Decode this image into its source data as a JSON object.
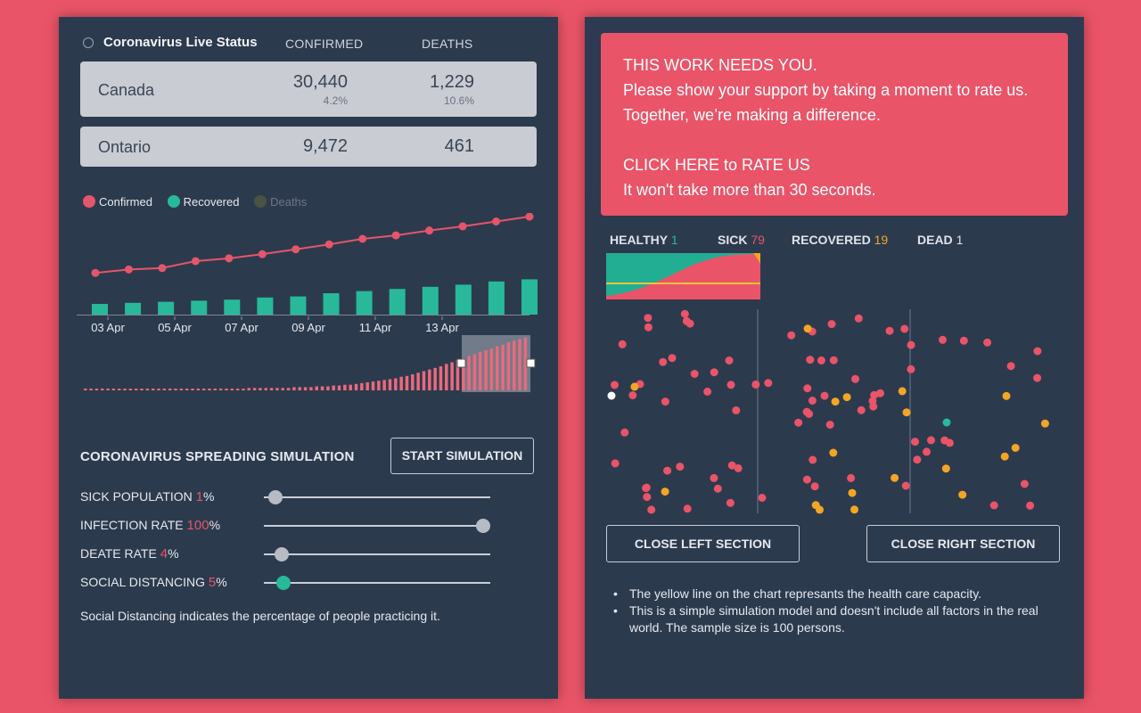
{
  "live_status": {
    "title": "Coronavirus Live Status",
    "col_confirmed": "CONFIRMED",
    "col_deaths": "DEATHS",
    "rows": [
      {
        "region": "Canada",
        "confirmed": "30,440",
        "confirmed_pct": "4.2%",
        "deaths": "1,229",
        "deaths_pct": "10.6%"
      },
      {
        "region": "Ontario",
        "confirmed": "9,472",
        "deaths": "461"
      }
    ]
  },
  "legend": {
    "confirmed": "Confirmed",
    "recovered": "Recovered",
    "deaths": "Deaths",
    "colors": {
      "confirmed": "#e4566a",
      "recovered": "#27b99a",
      "deaths": "#4a5243"
    }
  },
  "chart_data": {
    "type": "line",
    "x_ticks": [
      "03 Apr",
      "05 Apr",
      "07 Apr",
      "09 Apr",
      "11 Apr",
      "13 Apr"
    ],
    "series": [
      {
        "name": "Confirmed",
        "values": [
          1,
          6,
          8,
          18,
          22,
          28,
          35,
          42,
          50,
          55,
          62,
          68,
          75,
          82
        ]
      },
      {
        "name": "Recovered",
        "values": [
          10,
          11,
          12,
          13,
          14,
          16,
          17,
          20,
          22,
          24,
          26,
          28,
          31,
          33
        ]
      }
    ]
  },
  "mini_chart": {
    "values": [
      2,
      2,
      2,
      2,
      2,
      2,
      2,
      2,
      2,
      2,
      2,
      2,
      2,
      2,
      2,
      2,
      2,
      2,
      2,
      2,
      2,
      2,
      2,
      2,
      2,
      2,
      2,
      2,
      2,
      3,
      3,
      3,
      3,
      3,
      3,
      3,
      3,
      4,
      4,
      4,
      4,
      5,
      5,
      5,
      6,
      6,
      7,
      7,
      8,
      9,
      10,
      11,
      12,
      13,
      14,
      15,
      17,
      18,
      20,
      22,
      24,
      26,
      28,
      30,
      33,
      35,
      38,
      40,
      43,
      45,
      48,
      50,
      52,
      55,
      57,
      60,
      62,
      64,
      66
    ]
  },
  "simulation": {
    "title": "CORONAVIRUS SPREADING SIMULATION",
    "start_label": "START SIMULATION",
    "sliders": [
      {
        "label": "SICK POPULATION",
        "value": "1",
        "unit": "%",
        "fraction": 0.02,
        "color": "#b7bcc4"
      },
      {
        "label": "INFECTION RATE",
        "value": "100",
        "unit": "%",
        "fraction": 1.0,
        "color": "#b7bcc4"
      },
      {
        "label": "DEATE RATE",
        "value": "4",
        "unit": "%",
        "fraction": 0.05,
        "color": "#b7bcc4"
      },
      {
        "label": "SOCIAL DISTANCING",
        "value": "5",
        "unit": "%",
        "fraction": 0.06,
        "color": "#27b99a"
      }
    ],
    "note": "Social Distancing indicates the percentage of people practicing it."
  },
  "cta": {
    "line1": "THIS WORK NEEDS YOU.",
    "line2": "Please show your support by taking a moment to rate us.",
    "line3": "Together, we’re making a difference.",
    "line4": "CLICK HERE to RATE US",
    "line5": "It won't take more than 30 seconds."
  },
  "counts": {
    "healthy_label": "HEALTHY",
    "healthy": "1",
    "sick_label": "SICK",
    "sick": "79",
    "recovered_label": "RECOVERED",
    "recovered": "19",
    "dead_label": "DEAD",
    "dead": "1"
  },
  "sim_field": {
    "colors": {
      "sick": "#ea5468",
      "recovered": "#f3a624",
      "healthy": "#ffffff",
      "special": "#27b99a",
      "divider": "#4a5a70"
    }
  },
  "buttons": {
    "close_left": "CLOSE LEFT SECTION",
    "close_right": "CLOSE RIGHT SECTION"
  },
  "notes": [
    "The yellow line on the chart represants the health care capacity.",
    "This is a simple simulation model and doesn't include all factors in the real world. The sample size is 100 persons."
  ]
}
